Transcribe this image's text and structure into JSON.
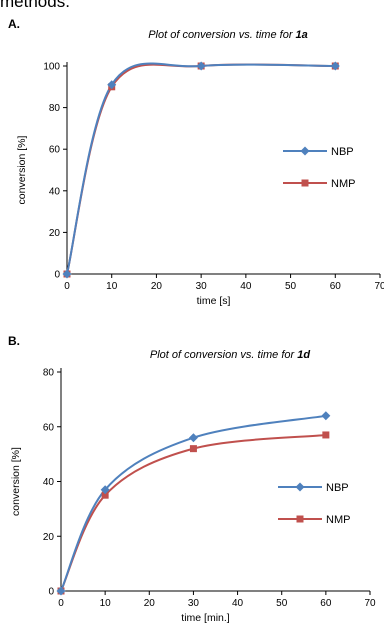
{
  "page": {
    "clipped_text": "methods."
  },
  "chart_data": [
    {
      "panel": "A.",
      "type": "line",
      "title_prefix": "Plot of conversion vs. time for ",
      "title_bold": "1a",
      "xlabel": "time [s]",
      "ylabel": "conversion [%]",
      "xlim": [
        0,
        70
      ],
      "ylim": [
        0,
        100
      ],
      "xticks": [
        0,
        10,
        20,
        30,
        40,
        50,
        60,
        70
      ],
      "yticks": [
        0,
        20,
        40,
        60,
        80,
        100
      ],
      "legend_position": "right",
      "series": [
        {
          "name": "NBP",
          "color": "#4f81bd",
          "marker": "diamond",
          "x": [
            0,
            10,
            30,
            60
          ],
          "y": [
            0,
            91,
            100,
            100
          ]
        },
        {
          "name": "NMP",
          "color": "#c0504d",
          "marker": "square",
          "x": [
            0,
            10,
            30,
            60
          ],
          "y": [
            0,
            90,
            100,
            100
          ]
        }
      ]
    },
    {
      "panel": "B.",
      "type": "line",
      "title_prefix": "Plot of conversion vs. time for ",
      "title_bold": "1d",
      "xlabel": "time [min.]",
      "ylabel": "conversion [%]",
      "xlim": [
        0,
        70
      ],
      "ylim": [
        0,
        80
      ],
      "xticks": [
        0,
        10,
        20,
        30,
        40,
        50,
        60,
        70
      ],
      "yticks": [
        0,
        20,
        40,
        60,
        80
      ],
      "legend_position": "right",
      "series": [
        {
          "name": "NBP",
          "color": "#4f81bd",
          "marker": "diamond",
          "x": [
            0,
            10,
            30,
            60
          ],
          "y": [
            0,
            37,
            56,
            64
          ]
        },
        {
          "name": "NMP",
          "color": "#c0504d",
          "marker": "square",
          "x": [
            0,
            10,
            30,
            60
          ],
          "y": [
            0,
            35,
            52,
            57
          ]
        }
      ]
    }
  ]
}
